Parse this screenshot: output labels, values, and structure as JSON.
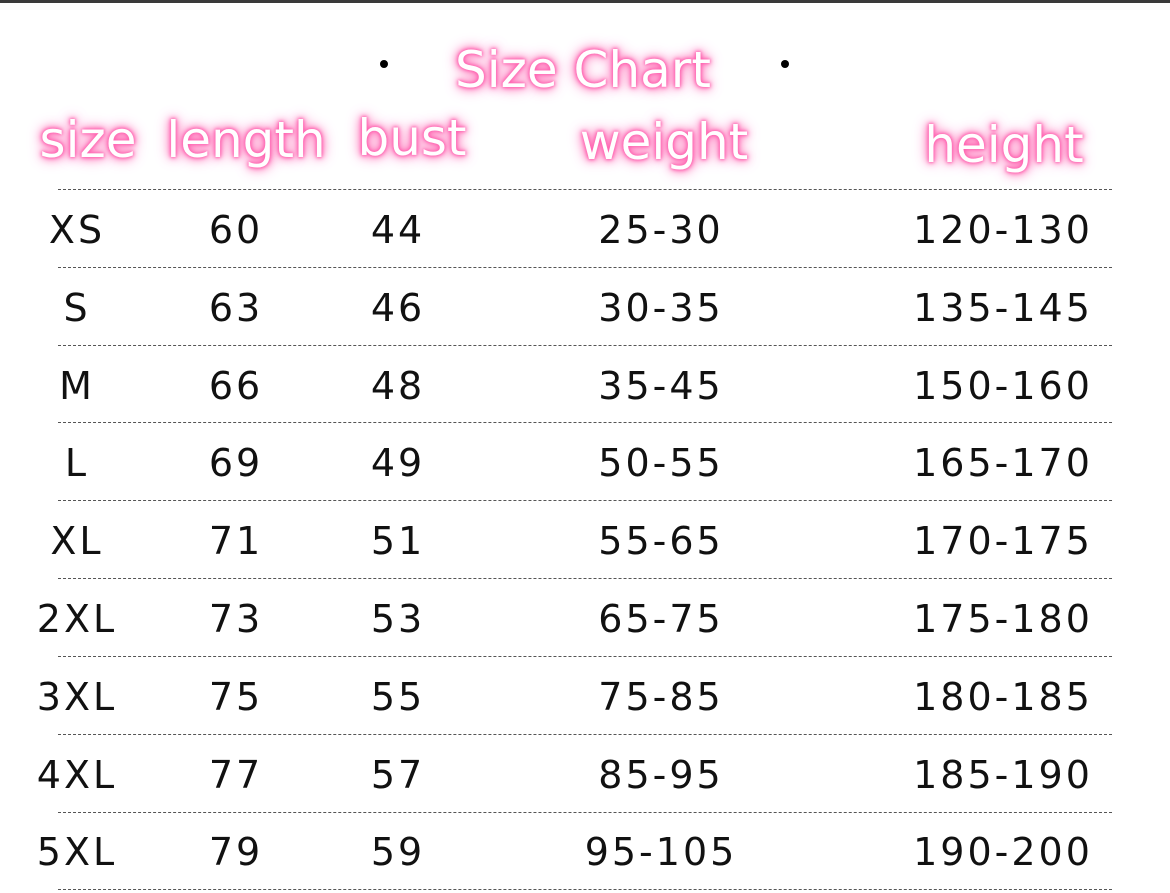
{
  "title": "Size Chart",
  "headers": [
    "size",
    "length",
    "bust",
    "weight",
    "height"
  ],
  "rows": [
    [
      "XS",
      "60",
      "44",
      "25-30",
      "120-130"
    ],
    [
      "S",
      "63",
      "46",
      "30-35",
      "135-145"
    ],
    [
      "M",
      "66",
      "48",
      "35-45",
      "150-160"
    ],
    [
      "L",
      "69",
      "49",
      "50-55",
      "165-170"
    ],
    [
      "XL",
      "71",
      "51",
      "55-65",
      "170-175"
    ],
    [
      "2XL",
      "73",
      "53",
      "65-75",
      "175-180"
    ],
    [
      "3XL",
      "75",
      "55",
      "75-85",
      "180-185"
    ],
    [
      "4XL",
      "77",
      "57",
      "85-95",
      "185-190"
    ],
    [
      "5XL",
      "79",
      "59",
      "95-105",
      "190-200"
    ]
  ],
  "colors": {
    "glow": "#ff5fae",
    "text": "#111111"
  }
}
